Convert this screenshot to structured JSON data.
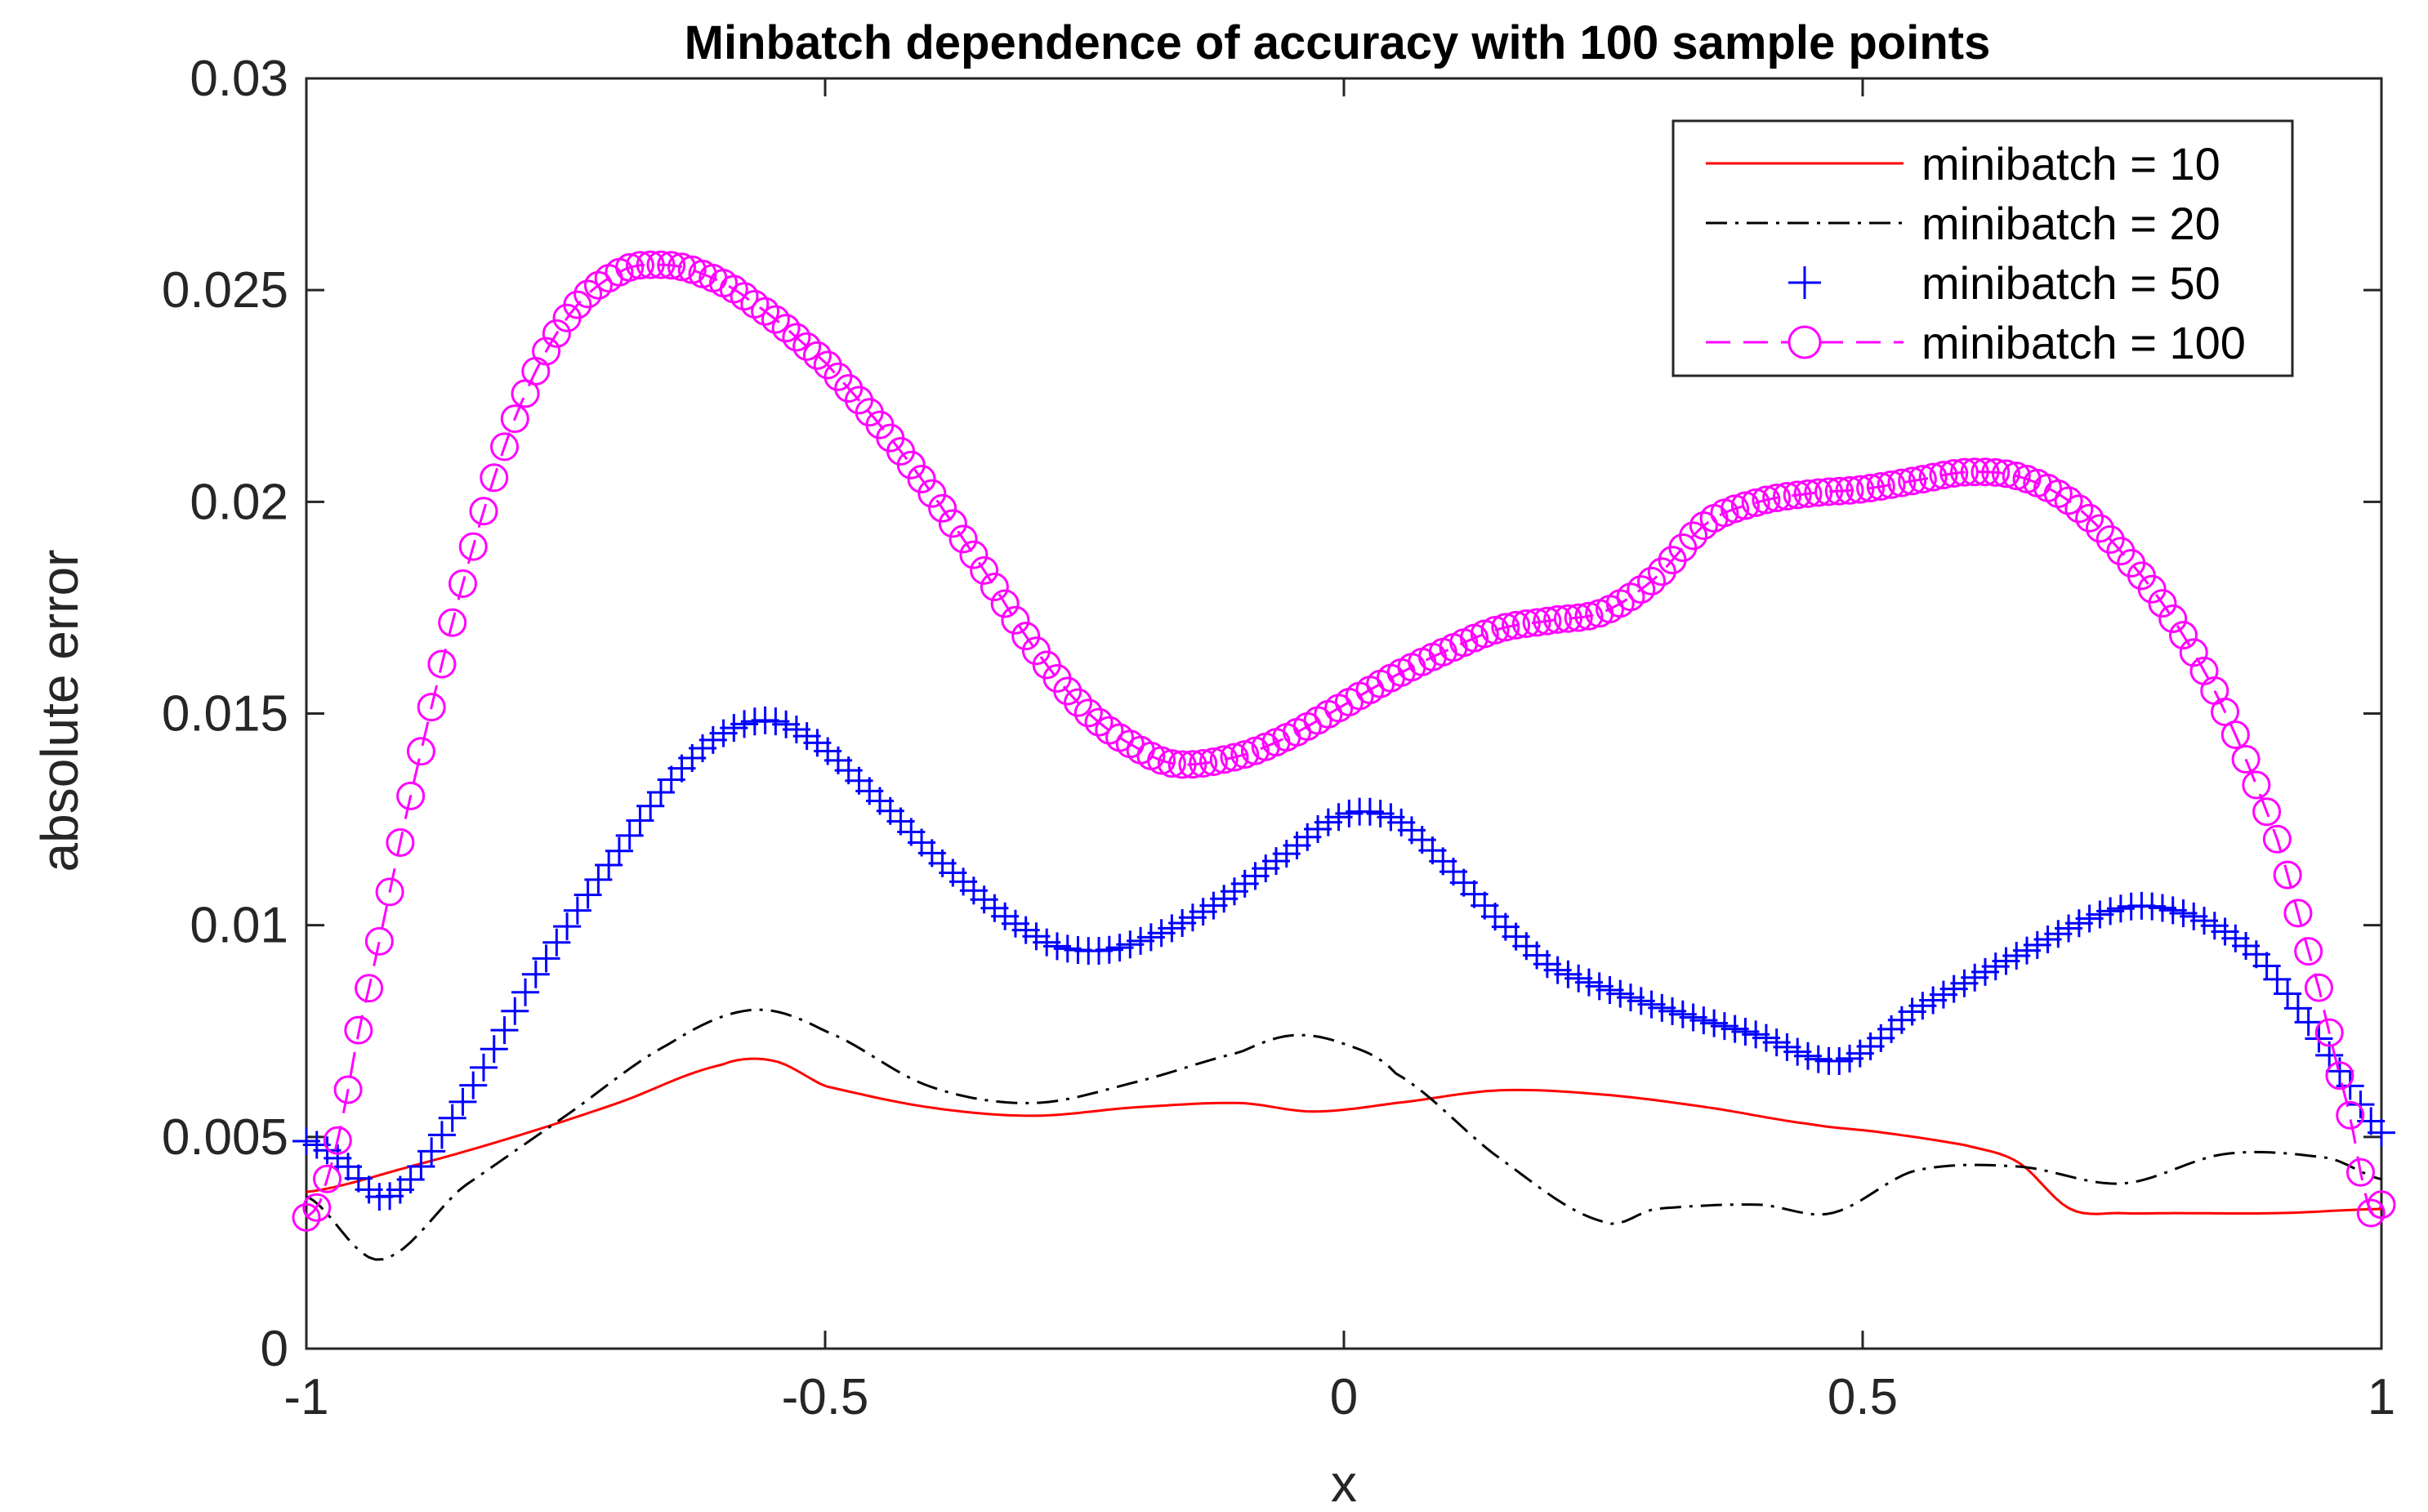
{
  "chart_data": {
    "type": "line",
    "title": "Minbatch dependence of accuracy with 100 sample points",
    "xlabel": "x",
    "ylabel": "absolute error",
    "xlim": [
      -1,
      1
    ],
    "ylim": [
      0,
      0.03
    ],
    "xticks": [
      -1,
      -0.5,
      0,
      0.5,
      1
    ],
    "xtick_labels": [
      "-1",
      "-0.5",
      "0",
      "0.5",
      "1"
    ],
    "yticks": [
      0,
      0.005,
      0.01,
      0.015,
      0.02,
      0.025,
      0.03
    ],
    "ytick_labels": [
      "0",
      "0.005",
      "0.01",
      "0.015",
      "0.02",
      "0.025",
      "0.03"
    ],
    "grid": false,
    "legend_position": "top-right",
    "series": [
      {
        "name": "minibatch = 10",
        "label": "minibatch = 10",
        "color": "#ff0000",
        "line": "solid",
        "marker": "none",
        "points": [
          [
            -1,
            0.0037
          ],
          [
            -0.9,
            0.0043
          ],
          [
            -0.8,
            0.005
          ],
          [
            -0.7,
            0.0058
          ],
          [
            -0.6,
            0.0067
          ],
          [
            -0.55,
            0.0068
          ],
          [
            -0.5,
            0.0062
          ],
          [
            -0.4,
            0.0057
          ],
          [
            -0.3,
            0.0055
          ],
          [
            -0.2,
            0.0057
          ],
          [
            -0.1,
            0.0058
          ],
          [
            -0.03,
            0.0056
          ],
          [
            0.05,
            0.0058
          ],
          [
            0.15,
            0.0061
          ],
          [
            0.25,
            0.006
          ],
          [
            0.35,
            0.0057
          ],
          [
            0.45,
            0.0053
          ],
          [
            0.52,
            0.0051
          ],
          [
            0.6,
            0.0048
          ],
          [
            0.65,
            0.0044
          ],
          [
            0.7,
            0.0033
          ],
          [
            0.75,
            0.0032
          ],
          [
            0.8,
            0.0032
          ],
          [
            0.9,
            0.0032
          ],
          [
            1.0,
            0.0033
          ]
        ]
      },
      {
        "name": "minibatch = 20",
        "label": "minibatch = 20",
        "color": "#000000",
        "line": "dashdot",
        "marker": "none",
        "points": [
          [
            -1,
            0.0036
          ],
          [
            -0.93,
            0.0021
          ],
          [
            -0.85,
            0.0038
          ],
          [
            -0.75,
            0.0055
          ],
          [
            -0.65,
            0.0072
          ],
          [
            -0.57,
            0.008
          ],
          [
            -0.5,
            0.0075
          ],
          [
            -0.4,
            0.0062
          ],
          [
            -0.3,
            0.0058
          ],
          [
            -0.2,
            0.0063
          ],
          [
            -0.1,
            0.007
          ],
          [
            -0.05,
            0.0074
          ],
          [
            0.0,
            0.0072
          ],
          [
            0.05,
            0.0065
          ],
          [
            0.15,
            0.0045
          ],
          [
            0.25,
            0.003
          ],
          [
            0.3,
            0.0033
          ],
          [
            0.4,
            0.0034
          ],
          [
            0.47,
            0.0032
          ],
          [
            0.55,
            0.0042
          ],
          [
            0.65,
            0.0043
          ],
          [
            0.75,
            0.0039
          ],
          [
            0.85,
            0.0046
          ],
          [
            0.95,
            0.0045
          ],
          [
            1.0,
            0.004
          ]
        ]
      },
      {
        "name": "minibatch = 50",
        "label": "minibatch = 50",
        "color": "#0000ff",
        "line": "none",
        "marker": "plus",
        "points": [
          [
            -1,
            0.0049
          ],
          [
            -0.97,
            0.0045
          ],
          [
            -0.92,
            0.0036
          ],
          [
            -0.85,
            0.0058
          ],
          [
            -0.78,
            0.0088
          ],
          [
            -0.7,
            0.0117
          ],
          [
            -0.63,
            0.0139
          ],
          [
            -0.57,
            0.0148
          ],
          [
            -0.52,
            0.0145
          ],
          [
            -0.45,
            0.013
          ],
          [
            -0.38,
            0.0113
          ],
          [
            -0.3,
            0.0098
          ],
          [
            -0.25,
            0.0094
          ],
          [
            -0.2,
            0.0096
          ],
          [
            -0.13,
            0.0104
          ],
          [
            -0.06,
            0.0116
          ],
          [
            0.0,
            0.0126
          ],
          [
            0.05,
            0.0125
          ],
          [
            0.1,
            0.0114
          ],
          [
            0.15,
            0.0101
          ],
          [
            0.2,
            0.009
          ],
          [
            0.3,
            0.0081
          ],
          [
            0.4,
            0.0074
          ],
          [
            0.48,
            0.0068
          ],
          [
            0.55,
            0.008
          ],
          [
            0.65,
            0.0093
          ],
          [
            0.75,
            0.0104
          ],
          [
            0.82,
            0.0102
          ],
          [
            0.88,
            0.0093
          ],
          [
            0.93,
            0.0077
          ],
          [
            0.97,
            0.0062
          ],
          [
            1.0,
            0.0051
          ]
        ]
      },
      {
        "name": "minibatch = 100",
        "label": "minibatch = 100",
        "color": "#ff00ff",
        "line": "dashed",
        "marker": "circle",
        "points": [
          [
            -1,
            0.0031
          ],
          [
            -0.98,
            0.004
          ],
          [
            -0.95,
            0.0075
          ],
          [
            -0.9,
            0.013
          ],
          [
            -0.85,
            0.018
          ],
          [
            -0.8,
            0.0219
          ],
          [
            -0.75,
            0.0243
          ],
          [
            -0.7,
            0.0254
          ],
          [
            -0.66,
            0.0256
          ],
          [
            -0.62,
            0.0254
          ],
          [
            -0.57,
            0.0247
          ],
          [
            -0.5,
            0.0233
          ],
          [
            -0.45,
            0.0219
          ],
          [
            -0.4,
            0.0203
          ],
          [
            -0.35,
            0.0185
          ],
          [
            -0.3,
            0.0166
          ],
          [
            -0.25,
            0.0151
          ],
          [
            -0.2,
            0.0142
          ],
          [
            -0.16,
            0.0138
          ],
          [
            -0.1,
            0.014
          ],
          [
            -0.05,
            0.0145
          ],
          [
            0.0,
            0.0152
          ],
          [
            0.05,
            0.0159
          ],
          [
            0.1,
            0.0165
          ],
          [
            0.15,
            0.017
          ],
          [
            0.2,
            0.0172
          ],
          [
            0.25,
            0.0174
          ],
          [
            0.3,
            0.0182
          ],
          [
            0.35,
            0.0195
          ],
          [
            0.4,
            0.02
          ],
          [
            0.45,
            0.0202
          ],
          [
            0.5,
            0.0203
          ],
          [
            0.55,
            0.0205
          ],
          [
            0.6,
            0.0207
          ],
          [
            0.65,
            0.0206
          ],
          [
            0.7,
            0.02
          ],
          [
            0.75,
            0.0188
          ],
          [
            0.8,
            0.0172
          ],
          [
            0.85,
            0.015
          ],
          [
            0.9,
            0.012
          ],
          [
            0.94,
            0.0085
          ],
          [
            0.97,
            0.0055
          ],
          [
            0.99,
            0.0032
          ],
          [
            1.0,
            0.0034
          ]
        ]
      }
    ]
  }
}
